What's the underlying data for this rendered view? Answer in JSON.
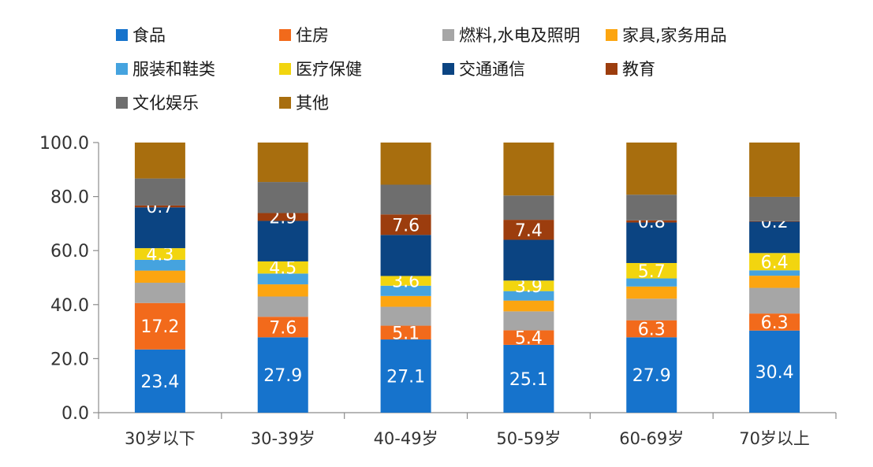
{
  "chart_data": {
    "type": "bar",
    "stacked": true,
    "categories": [
      "30岁以下",
      "30-39岁",
      "40-49岁",
      "50-59岁",
      "60-69岁",
      "70岁以上"
    ],
    "ylim": [
      0,
      100
    ],
    "yticks": [
      "0.0",
      "20.0",
      "40.0",
      "60.0",
      "80.0",
      "100.0"
    ],
    "grid": false,
    "legend_position": "top",
    "series": [
      {
        "name": "食品",
        "color": "#1673CC",
        "values": [
          23.4,
          27.9,
          27.1,
          25.1,
          27.9,
          30.4
        ],
        "labels": [
          "23.4",
          "27.9",
          "27.1",
          "25.1",
          "27.9",
          "30.4"
        ]
      },
      {
        "name": "住房",
        "color": "#F26A1B",
        "values": [
          17.2,
          7.6,
          5.1,
          5.4,
          6.3,
          6.3
        ],
        "labels": [
          "17.2",
          "7.6",
          "5.1",
          "5.4",
          "6.3",
          "6.3"
        ]
      },
      {
        "name": "燃料,水电及照明",
        "color": "#A6A6A6",
        "values": [
          7.5,
          7.5,
          7.0,
          7.0,
          8.0,
          9.5
        ],
        "labels": []
      },
      {
        "name": "家具,家务用品",
        "color": "#FCA510",
        "values": [
          4.5,
          4.5,
          4.0,
          4.0,
          4.5,
          4.5
        ],
        "labels": []
      },
      {
        "name": "服装和鞋类",
        "color": "#45A3DF",
        "values": [
          4.0,
          4.0,
          3.8,
          3.5,
          3.0,
          2.0
        ],
        "labels": []
      },
      {
        "name": "医疗保健",
        "color": "#F2D50F",
        "values": [
          4.3,
          4.5,
          3.6,
          3.9,
          5.7,
          6.4
        ],
        "labels": [
          "4.3",
          "4.5",
          "3.6",
          "3.9",
          "5.7",
          "6.4"
        ]
      },
      {
        "name": "交通通信",
        "color": "#0B4482",
        "values": [
          15.1,
          15.0,
          15.2,
          15.1,
          15.0,
          11.6
        ],
        "labels": []
      },
      {
        "name": "教育",
        "color": "#9C3D0E",
        "values": [
          0.7,
          2.9,
          7.6,
          7.4,
          0.8,
          0.2
        ],
        "labels": [
          "0.7",
          "2.9",
          "7.6",
          "7.4",
          "0.8",
          "0.2"
        ]
      },
      {
        "name": "文化娱乐",
        "color": "#6E6E6E",
        "values": [
          10.0,
          11.5,
          11.0,
          9.0,
          9.5,
          9.0
        ],
        "labels": []
      },
      {
        "name": "其他",
        "color": "#A86E0E",
        "values": [
          13.3,
          14.6,
          15.6,
          19.6,
          19.3,
          20.1
        ],
        "labels": []
      }
    ]
  }
}
